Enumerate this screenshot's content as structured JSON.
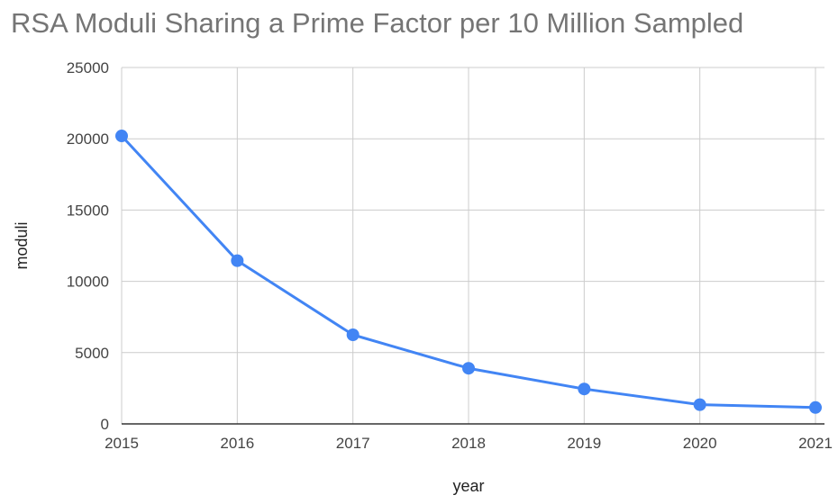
{
  "chart_data": {
    "type": "line",
    "title": "RSA Moduli Sharing a Prime Factor per 10 Million Sampled",
    "xlabel": "year",
    "ylabel": "moduli",
    "categories": [
      "2015",
      "2016",
      "2017",
      "2018",
      "2019",
      "2020",
      "2021"
    ],
    "series": [
      {
        "name": "moduli",
        "values": [
          20200,
          11450,
          6250,
          3900,
          2450,
          1350,
          1150
        ]
      }
    ],
    "ylim": [
      0,
      25000
    ],
    "yticks": [
      "0",
      "5000",
      "10000",
      "15000",
      "20000",
      "25000"
    ],
    "grid": true,
    "colors": {
      "line": "#4285f4",
      "grid": "#cccccc",
      "baseline": "#333333"
    }
  }
}
